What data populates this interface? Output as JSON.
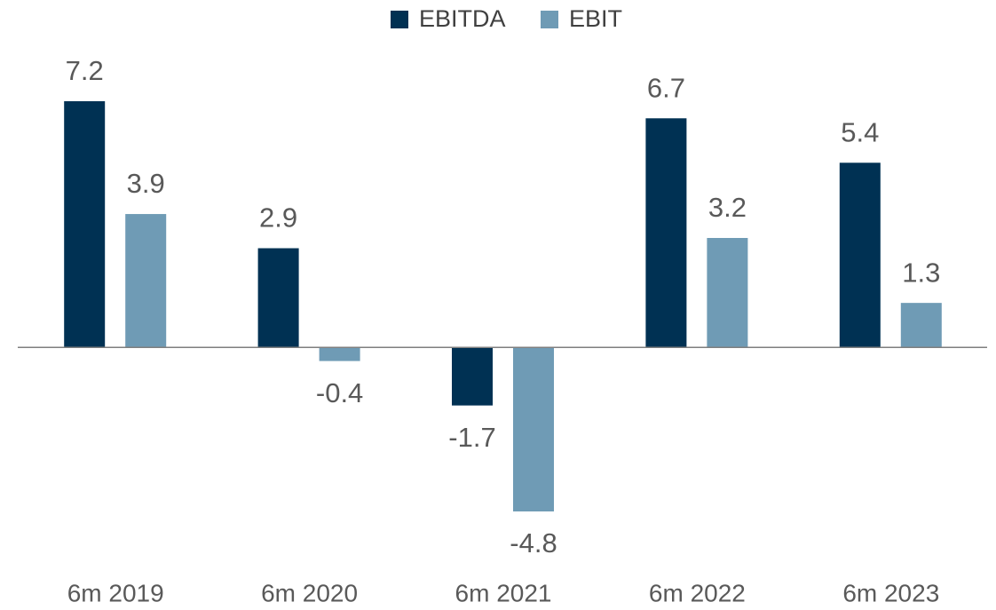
{
  "chart_data": {
    "type": "bar",
    "categories": [
      "6m 2019",
      "6m 2020",
      "6m 2021",
      "6m 2022",
      "6m 2023"
    ],
    "series": [
      {
        "name": "EBITDA",
        "color": "#003153",
        "values": [
          7.2,
          2.9,
          -1.7,
          6.7,
          5.4
        ]
      },
      {
        "name": "EBIT",
        "color": "#6f9bb5",
        "values": [
          3.9,
          -0.4,
          -4.8,
          3.2,
          1.3
        ]
      }
    ],
    "legend": "top"
  }
}
